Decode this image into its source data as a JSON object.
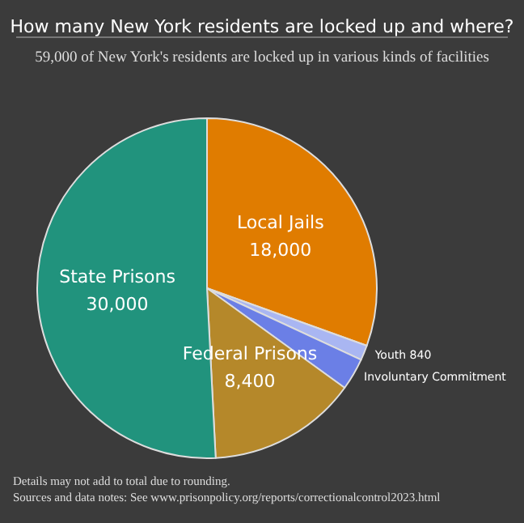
{
  "chart_data": {
    "type": "pie",
    "title": "How many New York residents are locked up and where?",
    "subtitle": "59,000 of New York's residents are locked up in various kinds of facilities",
    "categories": [
      "Local Jails",
      "Youth",
      "Involuntary Commitment",
      "Federal Prisons",
      "State Prisons"
    ],
    "values": [
      18000,
      840,
      1800,
      8400,
      30000
    ],
    "colors": [
      "#e07c00",
      "#a9b6f2",
      "#6b7fe6",
      "#b5882a",
      "#21937d"
    ],
    "value_labels": [
      "18,000",
      "840",
      null,
      "8,400",
      "30,000"
    ],
    "annotations": [
      "Details may not add to total due to rounding.",
      "Sources and data notes: See www.prisonpolicy.org/reports/correctionalcontrol2023.html"
    ]
  }
}
